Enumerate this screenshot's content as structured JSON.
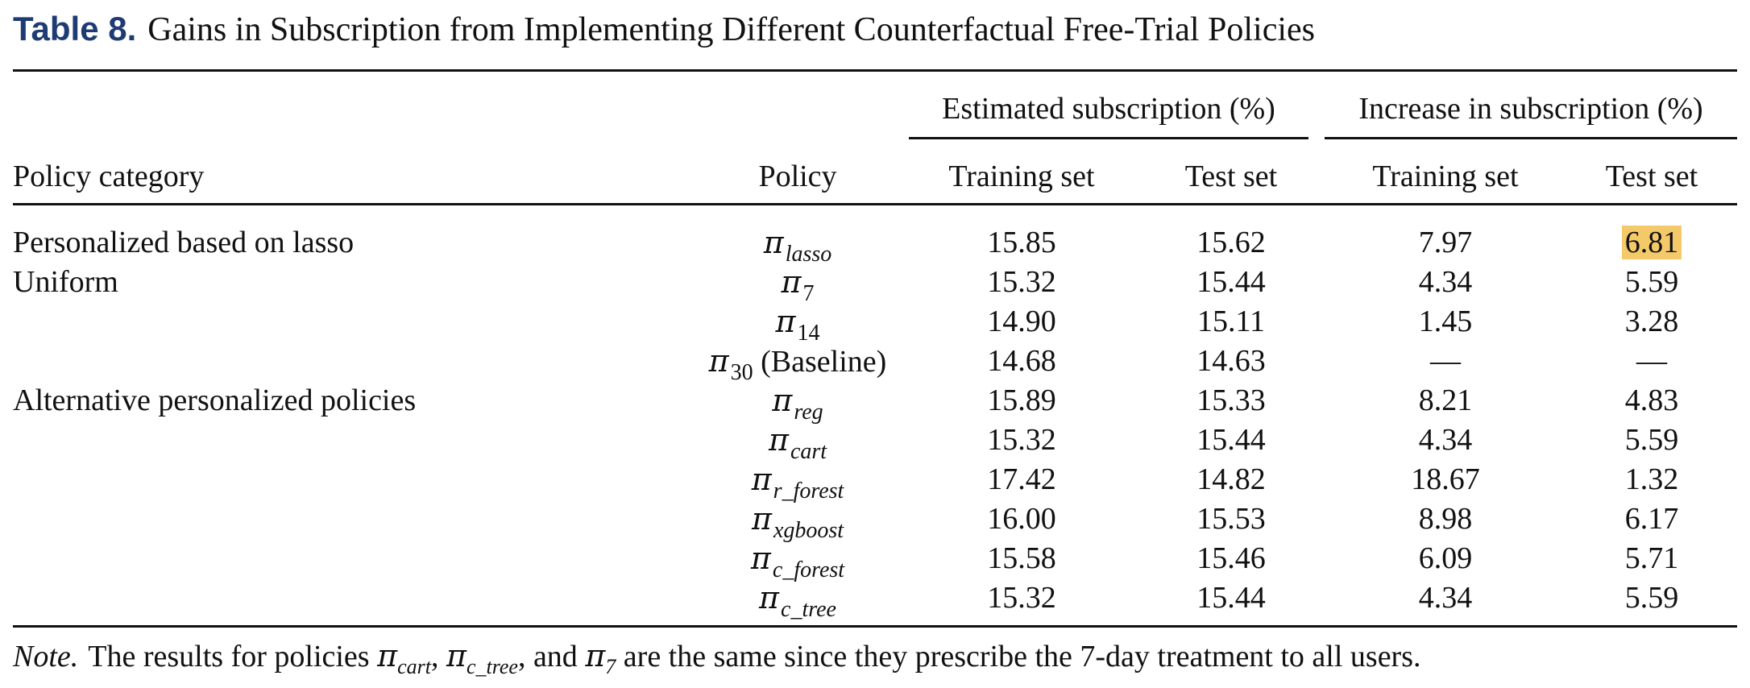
{
  "caption": {
    "label": "Table 8.",
    "title": "Gains in Subscription from Implementing Different Counterfactual Free-Trial Policies"
  },
  "headers": {
    "group_estimated": "Estimated subscription (%)",
    "group_increase": "Increase in subscription (%)",
    "policy_category": "Policy category",
    "policy": "Policy",
    "training_set_1": "Training set",
    "test_set_1": "Test set",
    "training_set_2": "Training set",
    "test_set_2": "Test set"
  },
  "rows": [
    {
      "category": "Personalized based on lasso",
      "pi": "π",
      "sub": "lasso",
      "suffix": "",
      "est_train": "15.85",
      "est_test": "15.62",
      "inc_train": "7.97",
      "inc_test": "6.81",
      "highlight": true
    },
    {
      "category": "Uniform",
      "pi": "π",
      "sub": "7",
      "suffix": "",
      "est_train": "15.32",
      "est_test": "15.44",
      "inc_train": "4.34",
      "inc_test": "5.59"
    },
    {
      "category": "",
      "pi": "π",
      "sub": "14",
      "suffix": "",
      "est_train": "14.90",
      "est_test": "15.11",
      "inc_train": "1.45",
      "inc_test": "3.28"
    },
    {
      "category": "",
      "pi": "π",
      "sub": "30",
      "suffix": " (Baseline)",
      "est_train": "14.68",
      "est_test": "14.63",
      "inc_train": "—",
      "inc_test": "—"
    },
    {
      "category": "Alternative personalized policies",
      "pi": "π",
      "sub": "reg",
      "suffix": "",
      "est_train": "15.89",
      "est_test": "15.33",
      "inc_train": "8.21",
      "inc_test": "4.83"
    },
    {
      "category": "",
      "pi": "π",
      "sub": "cart",
      "suffix": "",
      "est_train": "15.32",
      "est_test": "15.44",
      "inc_train": "4.34",
      "inc_test": "5.59"
    },
    {
      "category": "",
      "pi": "π",
      "sub": "r_forest",
      "suffix": "",
      "est_train": "17.42",
      "est_test": "14.82",
      "inc_train": "18.67",
      "inc_test": "1.32"
    },
    {
      "category": "",
      "pi": "π",
      "sub": "xgboost",
      "suffix": "",
      "est_train": "16.00",
      "est_test": "15.53",
      "inc_train": "8.98",
      "inc_test": "6.17"
    },
    {
      "category": "",
      "pi": "π",
      "sub": "c_forest",
      "suffix": "",
      "est_train": "15.58",
      "est_test": "15.46",
      "inc_train": "6.09",
      "inc_test": "5.71"
    },
    {
      "category": "",
      "pi": "π",
      "sub": "c_tree",
      "suffix": "",
      "est_train": "15.32",
      "est_test": "15.44",
      "inc_train": "4.34",
      "inc_test": "5.59"
    }
  ],
  "note": {
    "label": "Note.",
    "text_a": "The results for policies ",
    "pi1": "π",
    "sub1": "cart",
    "text_b": ", ",
    "pi2": "π",
    "sub2": "c_tree",
    "text_c": ", and ",
    "pi3": "π",
    "sub3": "7",
    "text_d": " are the same since they prescribe the 7-day treatment to all users."
  },
  "colors": {
    "caption_label": "#1f3b73",
    "highlight": "#f3c96a"
  }
}
